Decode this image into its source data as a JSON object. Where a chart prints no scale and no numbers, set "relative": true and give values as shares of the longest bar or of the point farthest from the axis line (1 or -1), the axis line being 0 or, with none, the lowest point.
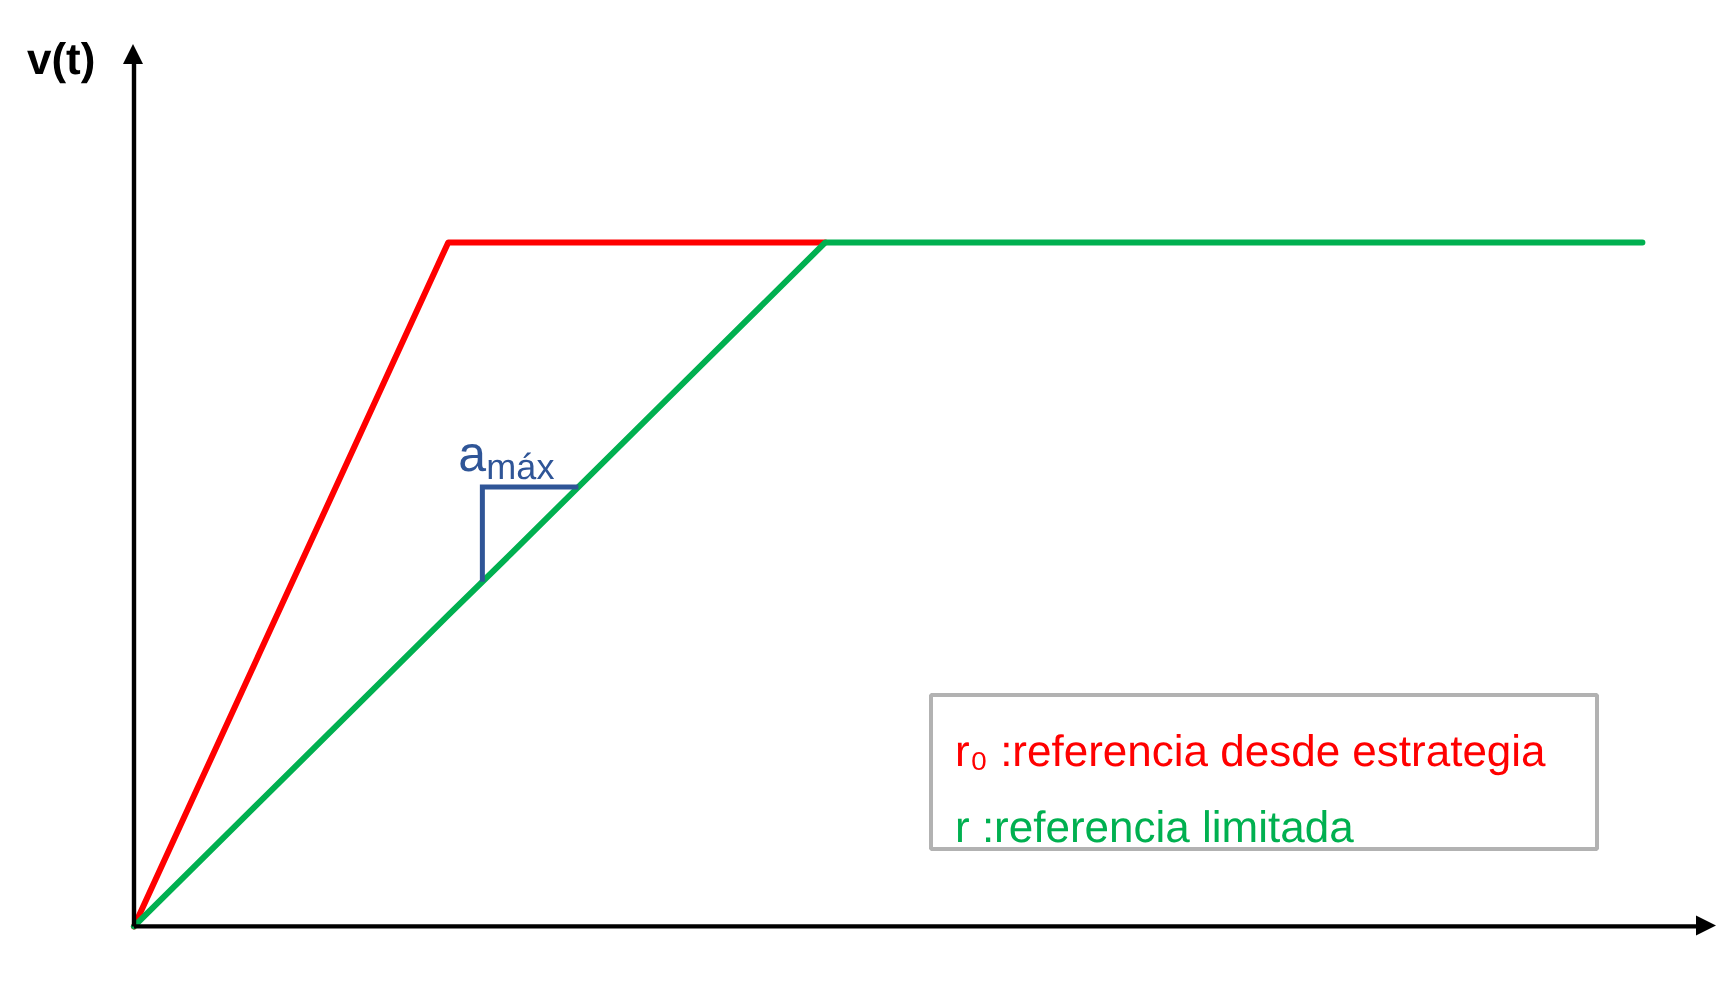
{
  "chart_data": {
    "type": "line",
    "relative": true,
    "ylabel": "v(t)",
    "tick_labels": false,
    "legend": "bottom right",
    "categories": [
      null,
      null,
      null,
      null,
      null,
      null,
      null,
      null,
      null,
      null,
      null,
      null,
      null,
      null,
      null,
      null,
      null,
      null,
      null,
      null,
      null,
      null,
      null,
      null,
      null
    ],
    "series": [
      {
        "name": "r₀ :referencia desde estrategia",
        "color": "#ff0000",
        "values": [
          0,
          0.2,
          0.4,
          0.6,
          0.8,
          1,
          1,
          1,
          1,
          1,
          1,
          1,
          null,
          null,
          null,
          null,
          null,
          null,
          null,
          null,
          null,
          null,
          null,
          null,
          null
        ]
      },
      {
        "name": "r  :referencia limitada",
        "color": "#00b050",
        "values": [
          0,
          0.091,
          0.182,
          0.273,
          0.364,
          0.455,
          0.545,
          0.636,
          0.727,
          0.818,
          0.909,
          1,
          1,
          1,
          1,
          1,
          1,
          1,
          1,
          1,
          1,
          1,
          1,
          1,
          1
        ]
      }
    ],
    "annotations": [
      "a$_{máx}$"
    ]
  }
}
